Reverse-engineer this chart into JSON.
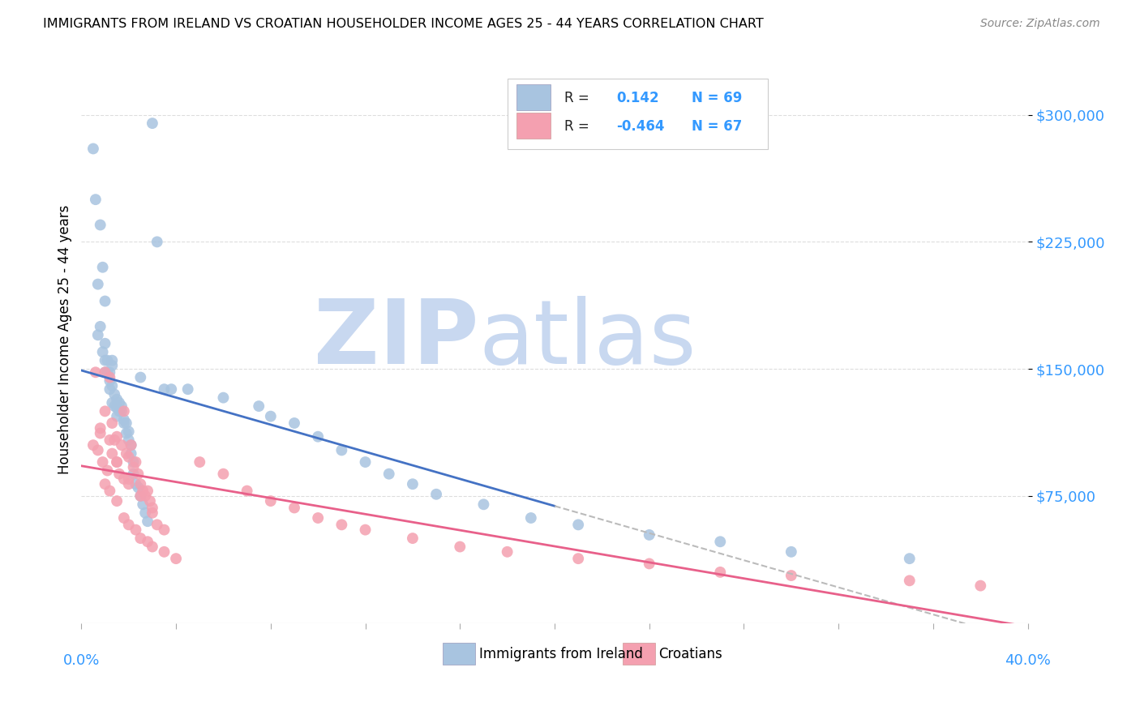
{
  "title": "IMMIGRANTS FROM IRELAND VS CROATIAN HOUSEHOLDER INCOME AGES 25 - 44 YEARS CORRELATION CHART",
  "source": "Source: ZipAtlas.com",
  "ylabel": "Householder Income Ages 25 - 44 years",
  "y_ticks": [
    75000,
    150000,
    225000,
    300000
  ],
  "y_tick_labels": [
    "$75,000",
    "$150,000",
    "$225,000",
    "$300,000"
  ],
  "xlim": [
    0.0,
    40.0
  ],
  "ylim": [
    0,
    335000
  ],
  "ireland_R": 0.142,
  "ireland_N": 69,
  "croatia_R": -0.464,
  "croatia_N": 67,
  "ireland_color": "#a8c4e0",
  "croatia_color": "#f4a0b0",
  "ireland_line_color": "#4472c4",
  "croatia_line_color": "#e8608a",
  "trendline_extend_color": "#bbbbbb",
  "background_color": "#ffffff",
  "grid_color": "#dddddd",
  "watermark_zip": "ZIP",
  "watermark_atlas": "atlas",
  "watermark_color_zip": "#c8d8f0",
  "watermark_color_atlas": "#c8d8f0",
  "ireland_scatter_x": [
    0.5,
    0.6,
    0.7,
    0.8,
    0.8,
    0.9,
    0.9,
    1.0,
    1.0,
    1.0,
    1.1,
    1.1,
    1.2,
    1.2,
    1.2,
    1.3,
    1.3,
    1.3,
    1.4,
    1.4,
    1.5,
    1.5,
    1.5,
    1.6,
    1.6,
    1.7,
    1.7,
    1.8,
    1.8,
    1.9,
    1.9,
    2.0,
    2.0,
    2.1,
    2.1,
    2.2,
    2.2,
    2.3,
    2.4,
    2.5,
    2.5,
    2.6,
    2.7,
    2.8,
    3.0,
    3.2,
    3.5,
    3.8,
    0.7,
    1.0,
    1.3,
    4.5,
    6.0,
    7.5,
    8.0,
    9.0,
    10.0,
    11.0,
    12.0,
    13.0,
    14.0,
    15.0,
    17.0,
    19.0,
    21.0,
    24.0,
    27.0,
    30.0,
    35.0
  ],
  "ireland_scatter_y": [
    280000,
    250000,
    170000,
    235000,
    175000,
    160000,
    210000,
    155000,
    148000,
    165000,
    155000,
    148000,
    148000,
    143000,
    138000,
    140000,
    152000,
    130000,
    135000,
    128000,
    132000,
    127000,
    122000,
    130000,
    125000,
    125000,
    128000,
    120000,
    118000,
    118000,
    112000,
    108000,
    113000,
    105000,
    100000,
    95000,
    88000,
    82000,
    80000,
    75000,
    145000,
    70000,
    65000,
    60000,
    295000,
    225000,
    138000,
    138000,
    200000,
    190000,
    155000,
    138000,
    133000,
    128000,
    122000,
    118000,
    110000,
    102000,
    95000,
    88000,
    82000,
    76000,
    70000,
    62000,
    58000,
    52000,
    48000,
    42000,
    38000
  ],
  "croatia_scatter_x": [
    0.5,
    0.6,
    0.7,
    0.8,
    0.9,
    1.0,
    1.0,
    1.1,
    1.2,
    1.3,
    1.3,
    1.4,
    1.5,
    1.5,
    1.6,
    1.7,
    1.8,
    1.8,
    1.9,
    2.0,
    2.0,
    2.1,
    2.2,
    2.3,
    2.4,
    2.5,
    2.6,
    2.7,
    2.8,
    2.9,
    3.0,
    3.2,
    3.5,
    0.8,
    1.0,
    1.2,
    1.5,
    1.8,
    2.0,
    2.3,
    2.5,
    2.8,
    3.0,
    3.5,
    4.0,
    5.0,
    6.0,
    7.0,
    8.0,
    9.0,
    10.0,
    11.0,
    12.0,
    14.0,
    16.0,
    18.0,
    21.0,
    24.0,
    27.0,
    30.0,
    35.0,
    38.0,
    1.2,
    1.5,
    2.0,
    2.5,
    3.0
  ],
  "croatia_scatter_y": [
    105000,
    148000,
    102000,
    115000,
    95000,
    148000,
    125000,
    90000,
    145000,
    100000,
    118000,
    108000,
    95000,
    110000,
    88000,
    105000,
    85000,
    125000,
    100000,
    82000,
    98000,
    105000,
    92000,
    95000,
    88000,
    82000,
    78000,
    75000,
    78000,
    72000,
    65000,
    58000,
    55000,
    112000,
    82000,
    78000,
    72000,
    62000,
    58000,
    55000,
    50000,
    48000,
    45000,
    42000,
    38000,
    95000,
    88000,
    78000,
    72000,
    68000,
    62000,
    58000,
    55000,
    50000,
    45000,
    42000,
    38000,
    35000,
    30000,
    28000,
    25000,
    22000,
    108000,
    95000,
    85000,
    75000,
    68000
  ]
}
